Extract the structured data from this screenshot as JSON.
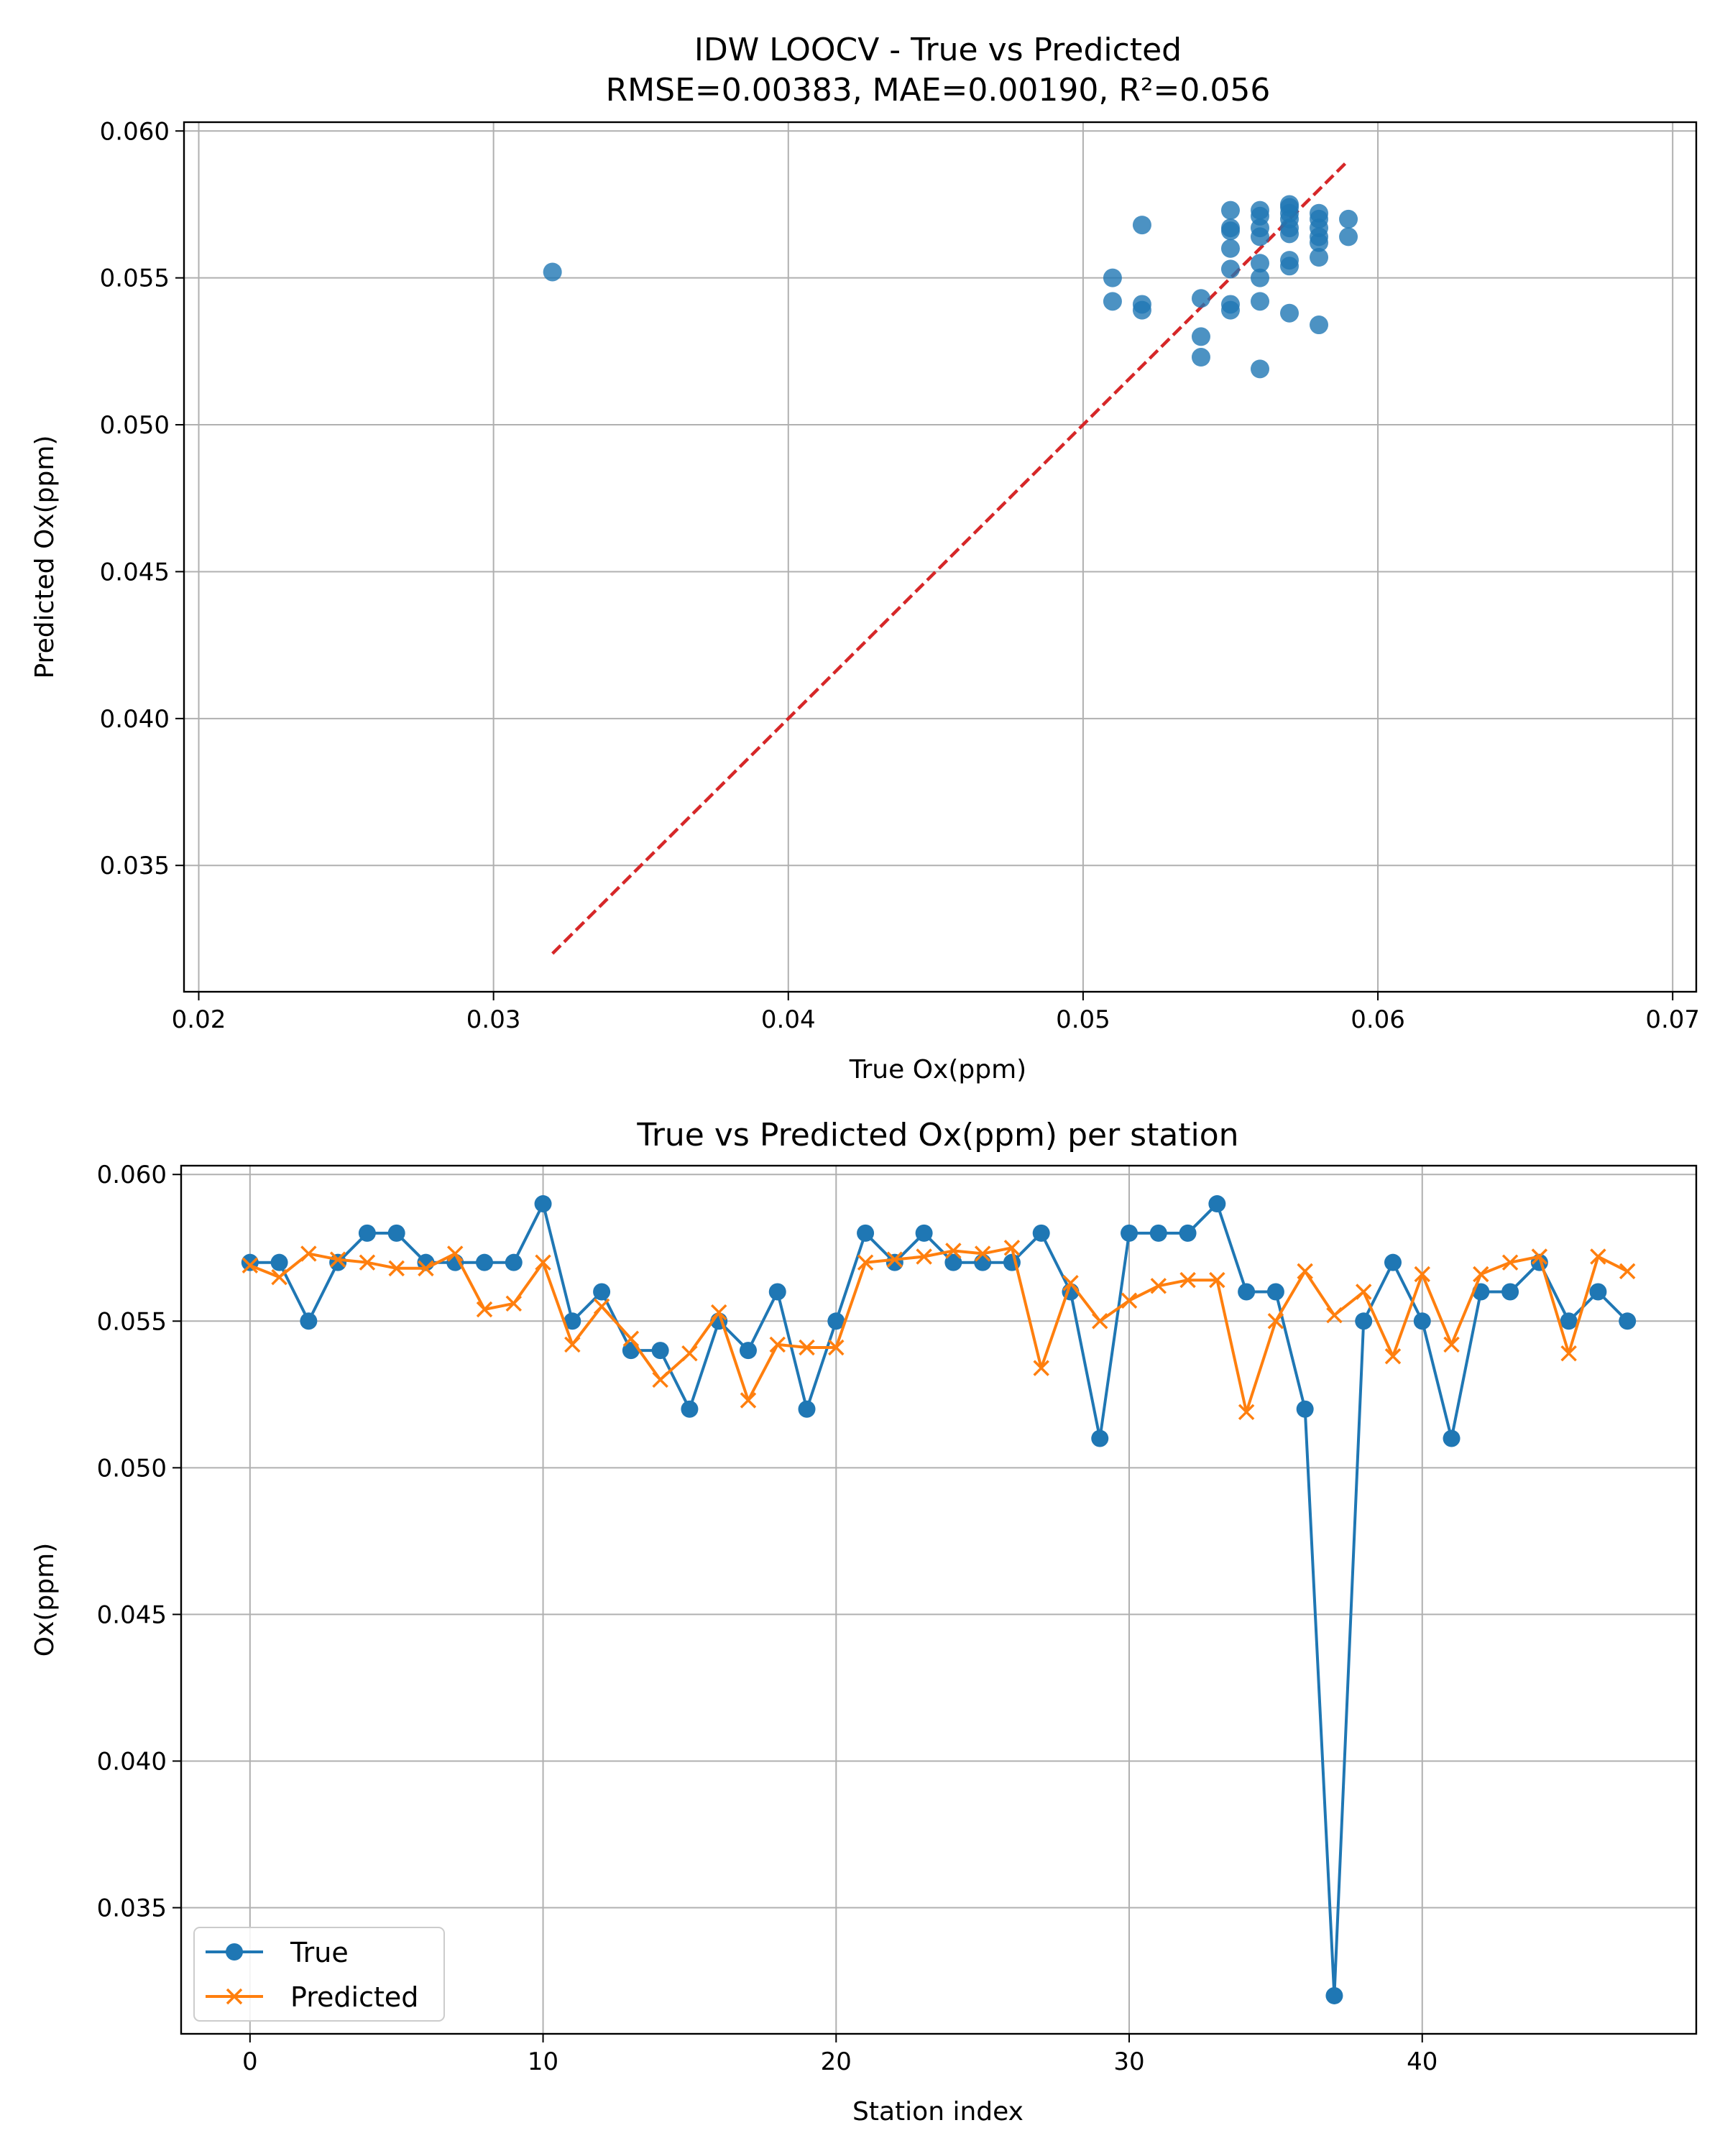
{
  "colors": {
    "true": "#1f77b4",
    "predicted": "#ff7f0e",
    "identity_line": "#d62728",
    "grid": "#b0b0b0"
  },
  "chart_data": [
    {
      "type": "scatter",
      "title_line1": "IDW LOOCV - True vs Predicted",
      "title_line2": "RMSE=0.00383, MAE=0.00190, R²=0.056",
      "xlabel": "True Ox(ppm)",
      "ylabel": "Predicted Ox(ppm)",
      "xlim": [
        0.0195,
        0.0708
      ],
      "ylim": [
        0.0307,
        0.0603
      ],
      "xticks": [
        0.02,
        0.03,
        0.04,
        0.05,
        0.06,
        0.07
      ],
      "xtick_labels": [
        "0.02",
        "0.03",
        "0.04",
        "0.05",
        "0.06",
        "0.07"
      ],
      "yticks": [
        0.035,
        0.04,
        0.045,
        0.05,
        0.055,
        0.06
      ],
      "ytick_labels": [
        "0.035",
        "0.040",
        "0.045",
        "0.050",
        "0.055",
        "0.060"
      ],
      "grid": true,
      "identity_line": [
        [
          0.032,
          0.032
        ],
        [
          0.059,
          0.059
        ]
      ],
      "points": [
        [
          0.032,
          0.0552
        ],
        [
          0.051,
          0.055
        ],
        [
          0.051,
          0.0542
        ],
        [
          0.052,
          0.0568
        ],
        [
          0.052,
          0.0541
        ],
        [
          0.052,
          0.0539
        ],
        [
          0.054,
          0.0543
        ],
        [
          0.054,
          0.053
        ],
        [
          0.054,
          0.0523
        ],
        [
          0.055,
          0.0573
        ],
        [
          0.055,
          0.0567
        ],
        [
          0.055,
          0.0566
        ],
        [
          0.055,
          0.056
        ],
        [
          0.055,
          0.0553
        ],
        [
          0.055,
          0.0541
        ],
        [
          0.055,
          0.0539
        ],
        [
          0.056,
          0.0573
        ],
        [
          0.056,
          0.0571
        ],
        [
          0.056,
          0.0567
        ],
        [
          0.056,
          0.0564
        ],
        [
          0.056,
          0.0555
        ],
        [
          0.056,
          0.055
        ],
        [
          0.056,
          0.0542
        ],
        [
          0.056,
          0.0519
        ],
        [
          0.057,
          0.0575
        ],
        [
          0.057,
          0.0574
        ],
        [
          0.057,
          0.0572
        ],
        [
          0.057,
          0.057
        ],
        [
          0.057,
          0.0567
        ],
        [
          0.057,
          0.0565
        ],
        [
          0.057,
          0.0556
        ],
        [
          0.057,
          0.0554
        ],
        [
          0.057,
          0.0538
        ],
        [
          0.058,
          0.0572
        ],
        [
          0.058,
          0.057
        ],
        [
          0.058,
          0.0567
        ],
        [
          0.058,
          0.0564
        ],
        [
          0.058,
          0.0562
        ],
        [
          0.058,
          0.0557
        ],
        [
          0.058,
          0.0534
        ],
        [
          0.059,
          0.057
        ],
        [
          0.059,
          0.0564
        ]
      ]
    },
    {
      "type": "line",
      "title": "True vs Predicted Ox(ppm) per station",
      "xlabel": "Station index",
      "ylabel": "Ox(ppm)",
      "xlim": [
        -2.35,
        49.35
      ],
      "ylim": [
        0.0307,
        0.0603
      ],
      "xticks": [
        0,
        10,
        20,
        30,
        40
      ],
      "xtick_labels": [
        "0",
        "10",
        "20",
        "30",
        "40"
      ],
      "yticks": [
        0.035,
        0.04,
        0.045,
        0.05,
        0.055,
        0.06
      ],
      "ytick_labels": [
        "0.035",
        "0.040",
        "0.045",
        "0.050",
        "0.055",
        "0.060"
      ],
      "grid": true,
      "legend_position": "lower-left",
      "x": [
        0,
        1,
        2,
        3,
        4,
        5,
        6,
        7,
        8,
        9,
        10,
        11,
        12,
        13,
        14,
        15,
        16,
        17,
        18,
        19,
        20,
        21,
        22,
        23,
        24,
        25,
        26,
        27,
        28,
        29,
        30,
        31,
        32,
        33,
        34,
        35,
        36,
        37,
        38,
        39,
        40,
        41,
        42,
        43,
        44,
        45,
        46,
        47
      ],
      "series": [
        {
          "name": "True",
          "marker": "circle",
          "values": [
            0.057,
            0.057,
            0.055,
            0.057,
            0.058,
            0.058,
            0.057,
            0.057,
            0.057,
            0.057,
            0.059,
            0.055,
            0.056,
            0.054,
            0.054,
            0.052,
            0.055,
            0.054,
            0.056,
            0.052,
            0.055,
            0.058,
            0.057,
            0.058,
            0.057,
            0.057,
            0.057,
            0.058,
            0.056,
            0.051,
            0.058,
            0.058,
            0.058,
            0.059,
            0.056,
            0.056,
            0.052,
            0.032,
            0.055,
            0.057,
            0.055,
            0.051,
            0.056,
            0.056,
            0.057,
            0.055,
            0.056,
            0.055
          ]
        },
        {
          "name": "Predicted",
          "marker": "x",
          "values": [
            0.0569,
            0.0565,
            0.0573,
            0.0571,
            0.057,
            0.0568,
            0.0568,
            0.0573,
            0.0554,
            0.0556,
            0.057,
            0.0542,
            0.0555,
            0.0544,
            0.053,
            0.0539,
            0.0553,
            0.0523,
            0.0542,
            0.0541,
            0.0541,
            0.057,
            0.0571,
            0.0572,
            0.0574,
            0.0573,
            0.0575,
            0.0534,
            0.0563,
            0.055,
            0.0557,
            0.0562,
            0.0564,
            0.0564,
            0.0519,
            0.055,
            0.0567,
            0.0552,
            0.056,
            0.0538,
            0.0566,
            0.0542,
            0.0566,
            0.057,
            0.0572,
            0.0539,
            0.0572,
            0.0567
          ]
        }
      ]
    }
  ]
}
